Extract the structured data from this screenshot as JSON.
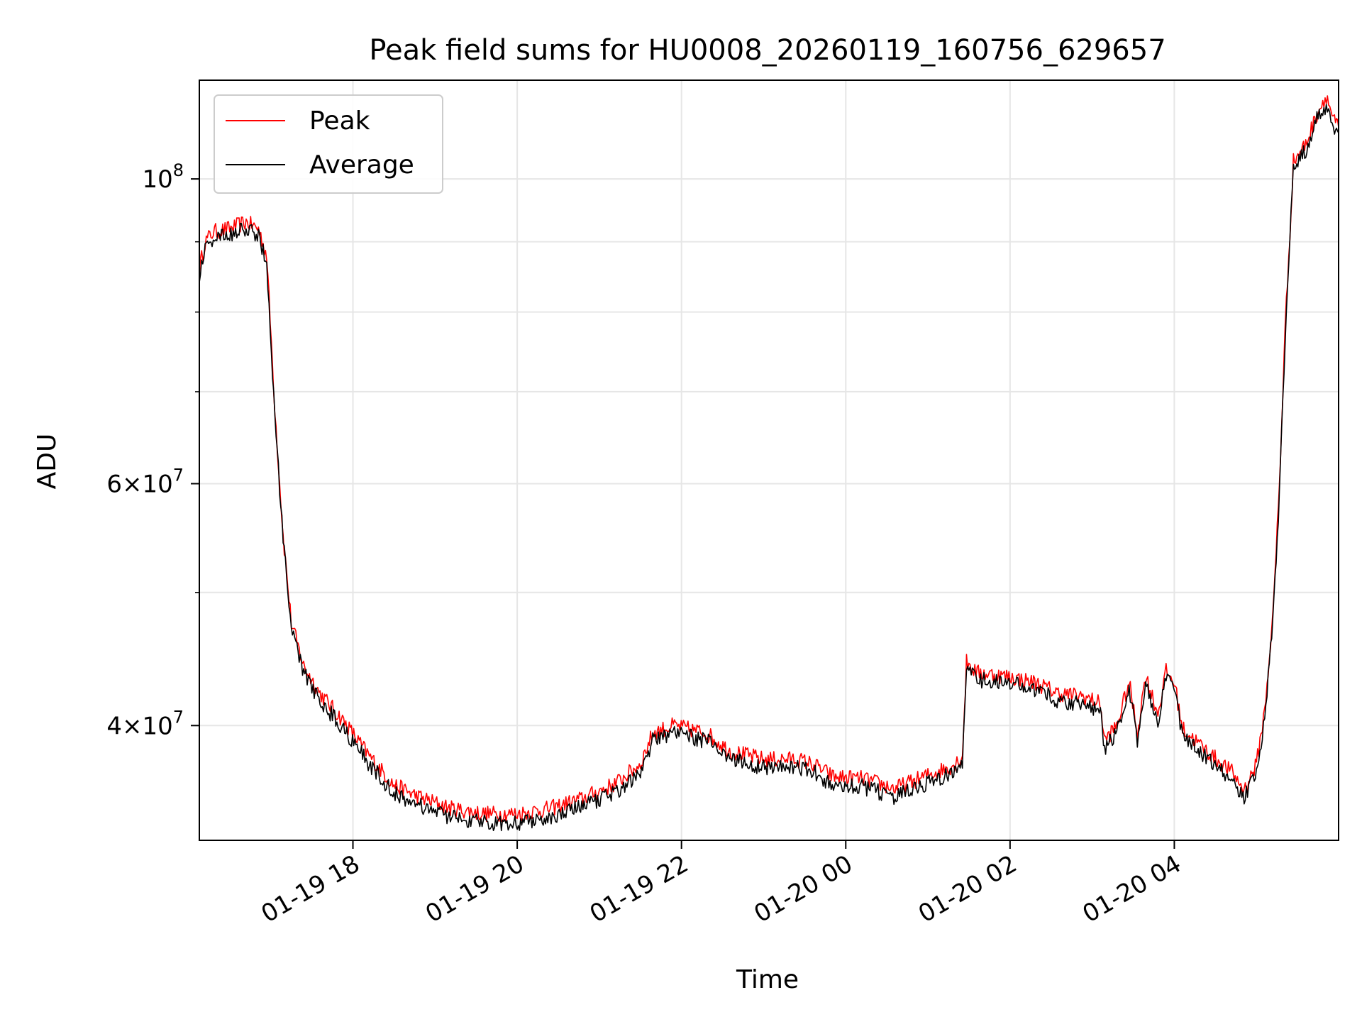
{
  "chart_data": {
    "type": "line",
    "title": "Peak field sums for HU0008_20260119_160756_629657",
    "xlabel": "Time",
    "ylabel": "ADU",
    "y_scale": "log",
    "ylim": [
      33000000,
      118000000
    ],
    "x_range_hours": [
      16.13,
      6.0
    ],
    "x_ticks": [
      {
        "label": "01-19 18",
        "hour": 18
      },
      {
        "label": "01-19 20",
        "hour": 20
      },
      {
        "label": "01-19 22",
        "hour": 22
      },
      {
        "label": "01-20 00",
        "hour": 24
      },
      {
        "label": "01-20 02",
        "hour": 26
      },
      {
        "label": "01-20 04",
        "hour": 28
      }
    ],
    "y_ticks": [
      {
        "value": 40000000,
        "base": "4×10",
        "exp": "7"
      },
      {
        "value": 60000000,
        "base": "6×10",
        "exp": "7"
      },
      {
        "value": 100000000,
        "base": "10",
        "exp": "8"
      }
    ],
    "y_minor_ticks": [
      50000000,
      70000000,
      80000000,
      90000000
    ],
    "legend": {
      "location": "upper-left",
      "entries": [
        "Peak",
        "Average"
      ]
    },
    "series": [
      {
        "name": "Peak",
        "color": "#ff0000",
        "points": [
          [
            16.13,
            86000000
          ],
          [
            16.2,
            90000000
          ],
          [
            16.3,
            91500000
          ],
          [
            16.5,
            92000000
          ],
          [
            16.7,
            93000000
          ],
          [
            16.85,
            92000000
          ],
          [
            16.95,
            88000000
          ],
          [
            17.05,
            68000000
          ],
          [
            17.15,
            55000000
          ],
          [
            17.25,
            47500000
          ],
          [
            17.4,
            44200000
          ],
          [
            17.6,
            42200000
          ],
          [
            17.9,
            40200000
          ],
          [
            18.2,
            38000000
          ],
          [
            18.5,
            36200000
          ],
          [
            18.8,
            35500000
          ],
          [
            19.2,
            34800000
          ],
          [
            19.6,
            34500000
          ],
          [
            20.0,
            34500000
          ],
          [
            20.4,
            34800000
          ],
          [
            20.8,
            35400000
          ],
          [
            21.2,
            36300000
          ],
          [
            21.5,
            37500000
          ],
          [
            21.65,
            39500000
          ],
          [
            21.9,
            40000000
          ],
          [
            22.3,
            39500000
          ],
          [
            22.6,
            38300000
          ],
          [
            23.0,
            37800000
          ],
          [
            23.4,
            37800000
          ],
          [
            23.6,
            37500000
          ],
          [
            23.85,
            36700000
          ],
          [
            24.2,
            36600000
          ],
          [
            24.6,
            36000000
          ],
          [
            25.0,
            36800000
          ],
          [
            25.3,
            37400000
          ],
          [
            25.42,
            38000000
          ],
          [
            25.47,
            44500000
          ],
          [
            25.6,
            43700000
          ],
          [
            26.0,
            43400000
          ],
          [
            26.3,
            43000000
          ],
          [
            26.6,
            42200000
          ],
          [
            26.9,
            42000000
          ],
          [
            27.1,
            41500000
          ],
          [
            27.15,
            39000000
          ],
          [
            27.3,
            40000000
          ],
          [
            27.45,
            43000000
          ],
          [
            27.55,
            39500000
          ],
          [
            27.65,
            43500000
          ],
          [
            27.8,
            40800000
          ],
          [
            27.9,
            43800000
          ],
          [
            28.0,
            43000000
          ],
          [
            28.1,
            39800000
          ],
          [
            28.4,
            38300000
          ],
          [
            28.7,
            37000000
          ],
          [
            28.85,
            35900000
          ],
          [
            29.0,
            37500000
          ],
          [
            29.1,
            41000000
          ],
          [
            29.2,
            48000000
          ],
          [
            29.28,
            60000000
          ],
          [
            29.35,
            78000000
          ],
          [
            29.45,
            103000000
          ],
          [
            29.6,
            106000000
          ],
          [
            29.75,
            112000000
          ],
          [
            29.85,
            115000000
          ],
          [
            29.95,
            110000000
          ],
          [
            30.0,
            109000000
          ]
        ]
      },
      {
        "name": "Average",
        "color": "#000000",
        "points": [
          [
            16.13,
            85000000
          ],
          [
            16.2,
            89000000
          ],
          [
            16.3,
            90500000
          ],
          [
            16.5,
            91000000
          ],
          [
            16.7,
            92000000
          ],
          [
            16.85,
            91000000
          ],
          [
            16.95,
            87000000
          ],
          [
            17.05,
            67000000
          ],
          [
            17.15,
            54500000
          ],
          [
            17.25,
            47000000
          ],
          [
            17.4,
            43700000
          ],
          [
            17.6,
            41700000
          ],
          [
            17.9,
            39700000
          ],
          [
            18.2,
            37500000
          ],
          [
            18.5,
            35700000
          ],
          [
            18.8,
            35000000
          ],
          [
            19.2,
            34300000
          ],
          [
            19.6,
            34000000
          ],
          [
            20.0,
            34000000
          ],
          [
            20.4,
            34300000
          ],
          [
            20.8,
            34900000
          ],
          [
            21.2,
            35800000
          ],
          [
            21.5,
            37000000
          ],
          [
            21.65,
            39000000
          ],
          [
            21.9,
            39500000
          ],
          [
            22.3,
            39000000
          ],
          [
            22.6,
            37800000
          ],
          [
            23.0,
            37300000
          ],
          [
            23.4,
            37300000
          ],
          [
            23.6,
            37000000
          ],
          [
            23.85,
            36200000
          ],
          [
            24.2,
            36100000
          ],
          [
            24.6,
            35500000
          ],
          [
            25.0,
            36300000
          ],
          [
            25.3,
            36900000
          ],
          [
            25.42,
            37500000
          ],
          [
            25.47,
            44000000
          ],
          [
            25.6,
            43200000
          ],
          [
            26.0,
            42900000
          ],
          [
            26.3,
            42500000
          ],
          [
            26.6,
            41700000
          ],
          [
            26.9,
            41500000
          ],
          [
            27.1,
            41000000
          ],
          [
            27.15,
            38500000
          ],
          [
            27.3,
            39500000
          ],
          [
            27.45,
            42500000
          ],
          [
            27.55,
            39000000
          ],
          [
            27.65,
            43000000
          ],
          [
            27.8,
            40300000
          ],
          [
            27.9,
            43300000
          ],
          [
            28.0,
            42500000
          ],
          [
            28.1,
            39300000
          ],
          [
            28.4,
            37800000
          ],
          [
            28.7,
            36500000
          ],
          [
            28.85,
            35400000
          ],
          [
            29.0,
            37000000
          ],
          [
            29.1,
            40500000
          ],
          [
            29.2,
            47500000
          ],
          [
            29.28,
            59000000
          ],
          [
            29.35,
            77000000
          ],
          [
            29.45,
            102000000
          ],
          [
            29.6,
            105000000
          ],
          [
            29.75,
            111000000
          ],
          [
            29.85,
            113000000
          ],
          [
            29.95,
            108000000
          ],
          [
            30.0,
            108000000
          ]
        ]
      }
    ]
  }
}
